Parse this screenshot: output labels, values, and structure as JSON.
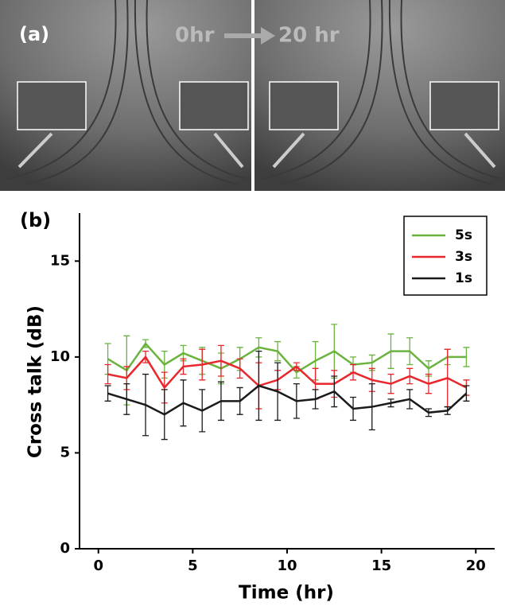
{
  "panel_a": {
    "label": "(a)",
    "left_time": "0hr",
    "right_time": "20 hr"
  },
  "chart_data": {
    "type": "line",
    "panel_label": "(b)",
    "xlabel": "Time (hr)",
    "ylabel": "Cross talk (dB)",
    "x": [
      0.5,
      1.5,
      2.5,
      3.5,
      4.5,
      5.5,
      6.5,
      7.5,
      8.5,
      9.5,
      10.5,
      11.5,
      12.5,
      13.5,
      14.5,
      15.5,
      16.5,
      17.5,
      18.5,
      19.5
    ],
    "series": [
      {
        "name": "5s",
        "color": "#6ab33f",
        "values": [
          9.9,
          9.3,
          10.7,
          9.6,
          10.2,
          9.8,
          9.4,
          9.9,
          10.5,
          10.3,
          9.2,
          9.8,
          10.3,
          9.6,
          9.7,
          10.3,
          10.3,
          9.4,
          10.0,
          10.0
        ],
        "errors": [
          0.8,
          1.8,
          0.2,
          0.7,
          0.4,
          0.7,
          0.8,
          0.6,
          0.5,
          0.5,
          0.3,
          1.0,
          1.4,
          0.4,
          0.4,
          0.9,
          0.7,
          0.4,
          0.4,
          0.5
        ]
      },
      {
        "name": "3s",
        "color": "#e8262b",
        "values": [
          9.1,
          8.9,
          10.0,
          8.4,
          9.5,
          9.6,
          9.8,
          9.4,
          8.5,
          8.8,
          9.5,
          8.6,
          8.6,
          9.2,
          8.8,
          8.6,
          9.0,
          8.6,
          8.9,
          8.4
        ],
        "errors": [
          0.5,
          0.6,
          0.3,
          0.8,
          0.4,
          0.8,
          0.8,
          0.5,
          1.2,
          0.5,
          0.2,
          0.8,
          0.7,
          0.4,
          0.6,
          0.5,
          0.4,
          0.5,
          1.5,
          0.4
        ]
      },
      {
        "name": "1s",
        "color": "#1a1a1a",
        "values": [
          8.1,
          7.8,
          7.5,
          7.0,
          7.6,
          7.2,
          7.7,
          7.7,
          8.5,
          8.2,
          7.7,
          7.8,
          8.2,
          7.3,
          7.4,
          7.6,
          7.8,
          7.1,
          7.2,
          8.1
        ],
        "errors": [
          0.4,
          0.8,
          1.6,
          1.3,
          1.2,
          1.1,
          1.0,
          0.7,
          1.8,
          1.5,
          0.9,
          0.5,
          0.8,
          0.6,
          1.2,
          0.2,
          0.5,
          0.2,
          0.2,
          0.4
        ]
      }
    ],
    "xlim": [
      -1,
      21
    ],
    "ylim": [
      0,
      17.5
    ],
    "xticks": [
      0,
      5,
      10,
      15,
      20
    ],
    "yticks": [
      0,
      5,
      10,
      15
    ],
    "legend": "upper right",
    "grid": false
  }
}
